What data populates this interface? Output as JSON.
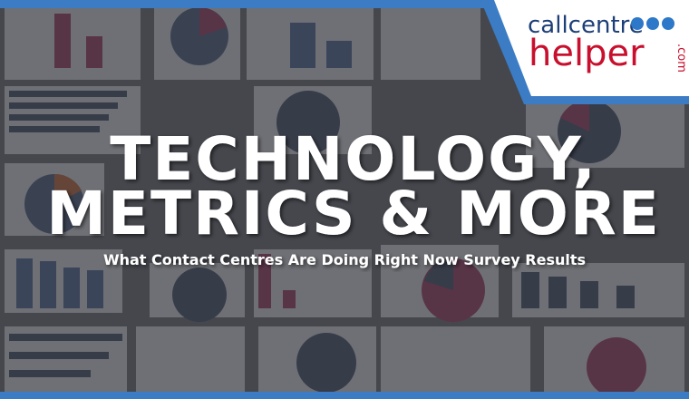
{
  "logo": {
    "name1": "callcentre",
    "name2": "helper",
    "suffix": ".com"
  },
  "title": {
    "line1": "TECHNOLOGY,",
    "line2": "METRICS & MORE"
  },
  "subtitle": "What Contact Centres Are Doing Right Now Survey Results"
}
